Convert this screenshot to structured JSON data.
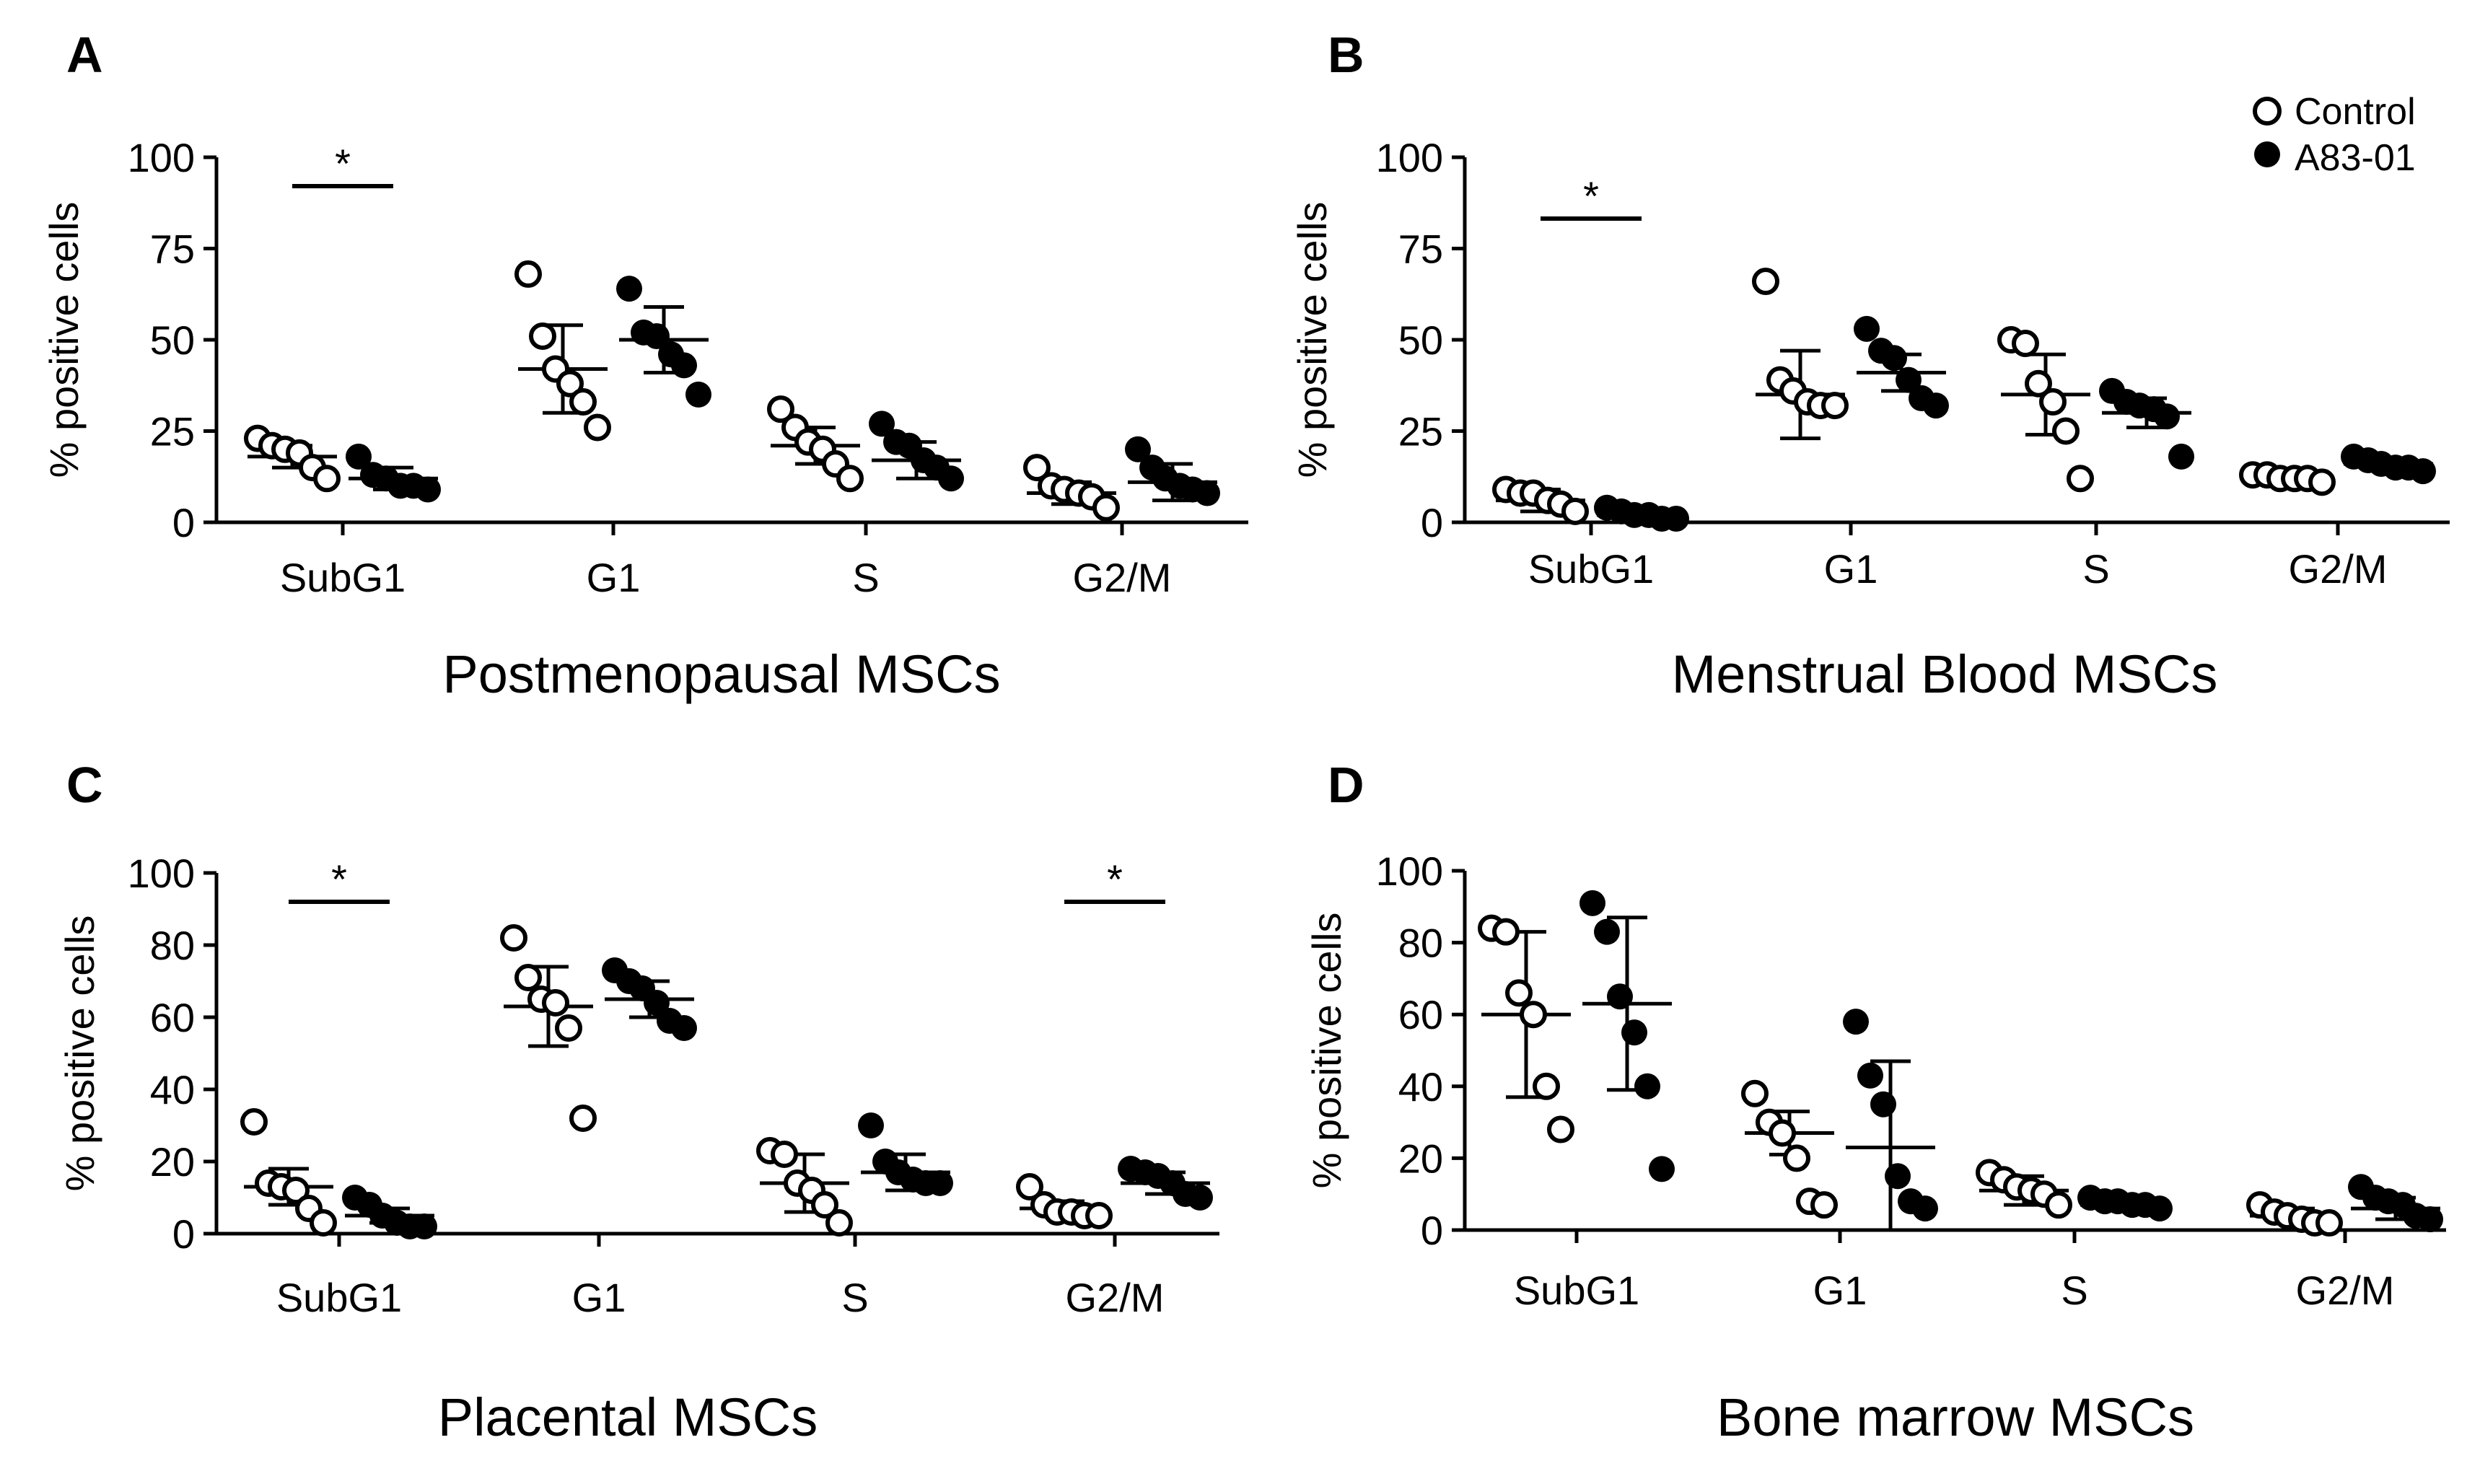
{
  "figure": {
    "legend": [
      {
        "label": "Control",
        "marker": "open-circle"
      },
      {
        "label": "A83-01",
        "marker": "filled-circle"
      }
    ]
  },
  "chart_data": [
    {
      "panel": "A",
      "type": "scatter",
      "title": "Postmenopausal MSCs",
      "xlabel": "",
      "ylabel": "% positive cells",
      "categories": [
        "SubG1",
        "G1",
        "S",
        "G2/M"
      ],
      "ylim": [
        0,
        100
      ],
      "yticks": [
        0,
        25,
        50,
        75,
        100
      ],
      "significance": [
        {
          "category": "SubG1",
          "label": "*"
        }
      ],
      "series": [
        {
          "name": "Control",
          "marker": "open",
          "groups": [
            {
              "points": [
                23,
                21,
                20,
                19,
                15,
                12
              ],
              "mean": 18,
              "sd": 3
            },
            {
              "points": [
                68,
                51,
                42,
                38,
                33,
                26
              ],
              "mean": 42,
              "sd": 12
            },
            {
              "points": [
                31,
                26,
                22,
                20,
                16,
                12
              ],
              "mean": 21,
              "sd": 5
            },
            {
              "points": [
                15,
                10,
                9,
                8,
                7,
                4
              ],
              "mean": 8,
              "sd": 3
            }
          ]
        },
        {
          "name": "A83-01",
          "marker": "filled",
          "groups": [
            {
              "points": [
                18,
                13,
                12,
                10,
                10,
                9
              ],
              "mean": 12,
              "sd": 3
            },
            {
              "points": [
                64,
                52,
                51,
                46,
                43,
                35
              ],
              "mean": 50,
              "sd": 9
            },
            {
              "points": [
                27,
                22,
                21,
                17,
                15,
                12
              ],
              "mean": 17,
              "sd": 5
            },
            {
              "points": [
                20,
                15,
                12,
                10,
                9,
                8
              ],
              "mean": 11,
              "sd": 5
            }
          ]
        }
      ]
    },
    {
      "panel": "B",
      "type": "scatter",
      "title": "Menstrual Blood MSCs",
      "xlabel": "",
      "ylabel": "% positive cells",
      "categories": [
        "SubG1",
        "G1",
        "S",
        "G2/M"
      ],
      "ylim": [
        0,
        100
      ],
      "yticks": [
        0,
        25,
        50,
        75,
        100
      ],
      "significance": [
        {
          "category": "SubG1",
          "label": "*"
        }
      ],
      "series": [
        {
          "name": "Control",
          "marker": "open",
          "groups": [
            {
              "points": [
                9,
                8,
                8,
                6,
                5,
                3
              ],
              "mean": 6,
              "sd": 3
            },
            {
              "points": [
                66,
                39,
                36,
                33,
                32,
                32
              ],
              "mean": 35,
              "sd": 12
            },
            {
              "points": [
                50,
                49,
                38,
                33,
                25,
                12
              ],
              "mean": 35,
              "sd": 11
            },
            {
              "points": [
                13,
                13,
                12,
                12,
                12,
                11
              ],
              "mean": 12,
              "sd": 1
            }
          ]
        },
        {
          "name": "A83-01",
          "marker": "filled",
          "groups": [
            {
              "points": [
                4,
                3,
                2,
                2,
                1,
                1
              ],
              "mean": 2,
              "sd": 1
            },
            {
              "points": [
                53,
                47,
                45,
                39,
                34,
                32
              ],
              "mean": 41,
              "sd": 5
            },
            {
              "points": [
                36,
                33,
                32,
                31,
                29,
                18
              ],
              "mean": 30,
              "sd": 4
            },
            {
              "points": [
                18,
                17,
                16,
                15,
                15,
                14
              ],
              "mean": 16,
              "sd": 1
            }
          ]
        }
      ]
    },
    {
      "panel": "C",
      "type": "scatter",
      "title": "Placental MSCs",
      "xlabel": "",
      "ylabel": "% positive cells",
      "categories": [
        "SubG1",
        "G1",
        "S",
        "G2/M"
      ],
      "ylim": [
        0,
        100
      ],
      "yticks": [
        0,
        20,
        40,
        60,
        80,
        100
      ],
      "significance": [
        {
          "category": "SubG1",
          "label": "*"
        },
        {
          "category": "G2/M",
          "label": "*"
        }
      ],
      "series": [
        {
          "name": "Control",
          "marker": "open",
          "groups": [
            {
              "points": [
                31,
                14,
                13,
                12,
                7,
                3
              ],
              "mean": 13,
              "sd": 5
            },
            {
              "points": [
                82,
                71,
                65,
                64,
                57,
                32
              ],
              "mean": 63,
              "sd": 11
            },
            {
              "points": [
                23,
                22,
                14,
                12,
                8,
                3
              ],
              "mean": 14,
              "sd": 8
            },
            {
              "points": [
                13,
                8,
                6,
                6,
                5,
                5
              ],
              "mean": 7,
              "sd": 2
            }
          ]
        },
        {
          "name": "A83-01",
          "marker": "filled",
          "groups": [
            {
              "points": [
                10,
                8,
                5,
                3,
                2,
                2
              ],
              "mean": 5,
              "sd": 2
            },
            {
              "points": [
                73,
                70,
                68,
                64,
                59,
                57
              ],
              "mean": 65,
              "sd": 5
            },
            {
              "points": [
                30,
                20,
                17,
                15,
                14,
                14
              ],
              "mean": 17,
              "sd": 5
            },
            {
              "points": [
                18,
                17,
                16,
                14,
                11,
                10
              ],
              "mean": 14,
              "sd": 3
            }
          ]
        }
      ]
    },
    {
      "panel": "D",
      "type": "scatter",
      "title": "Bone marrow MSCs",
      "xlabel": "",
      "ylabel": "% positive cells",
      "categories": [
        "SubG1",
        "G1",
        "S",
        "G2/M"
      ],
      "ylim": [
        0,
        100
      ],
      "yticks": [
        0,
        20,
        40,
        60,
        80,
        100
      ],
      "significance": [],
      "series": [
        {
          "name": "Control",
          "marker": "open",
          "groups": [
            {
              "points": [
                84,
                83,
                66,
                60,
                40,
                28
              ],
              "mean": 60,
              "sd": 23
            },
            {
              "points": [
                38,
                30,
                27,
                20,
                8,
                7
              ],
              "mean": 27,
              "sd": 6
            },
            {
              "points": [
                16,
                14,
                12,
                11,
                10,
                7
              ],
              "mean": 11,
              "sd": 4
            },
            {
              "points": [
                7,
                5,
                4,
                3,
                2,
                2
              ],
              "mean": 4,
              "sd": 2
            }
          ]
        },
        {
          "name": "A83-01",
          "marker": "filled",
          "groups": [
            {
              "points": [
                91,
                83,
                65,
                55,
                40,
                17
              ],
              "mean": 63,
              "sd": 24
            },
            {
              "points": [
                58,
                43,
                35,
                15,
                8,
                6
              ],
              "mean": 23,
              "sd": 24
            },
            {
              "points": [
                9,
                8,
                8,
                7,
                7,
                6
              ],
              "mean": 7,
              "sd": 1
            },
            {
              "points": [
                12,
                9,
                8,
                7,
                4,
                3
              ],
              "mean": 6,
              "sd": 3
            }
          ]
        }
      ]
    }
  ]
}
